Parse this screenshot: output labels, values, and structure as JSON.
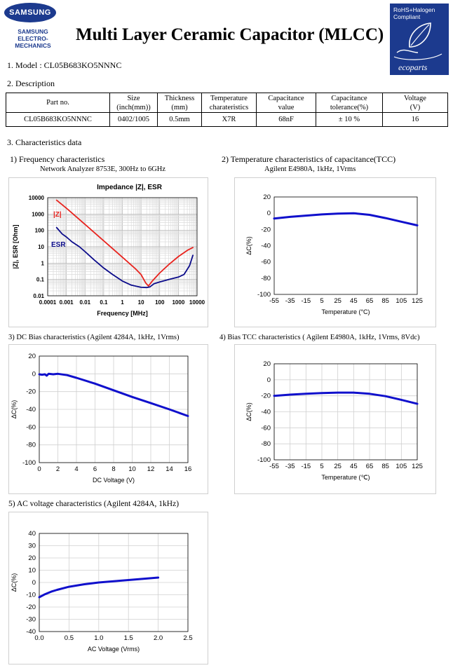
{
  "header": {
    "brand_logo": "SAMSUNG",
    "brand_sub_1": "SAMSUNG",
    "brand_sub_2": "ELECTRO-MECHANICS",
    "title": "Multi Layer Ceramic Capacitor (MLCC)",
    "rohs_line1": "RoHS+Halogen",
    "rohs_line2": "Compliant",
    "rohs_logo_text": "ecoparts"
  },
  "model_line": "1. Model : CL05B683KO5NNNC",
  "description_heading": "2. Description",
  "description_table": {
    "headers": [
      [
        "Part no.",
        ""
      ],
      [
        "Size",
        "(inch(mm))"
      ],
      [
        "Thickness",
        "(mm)"
      ],
      [
        "Temperature",
        "charateristics"
      ],
      [
        "Capacitance",
        "value"
      ],
      [
        "Capacitance",
        "tolerance(%)"
      ],
      [
        "Voltage",
        "(V)"
      ]
    ],
    "values": [
      "CL05B683KO5NNNC",
      "0402/1005",
      "0.5mm",
      "X7R",
      "68nF",
      "± 10 %",
      "16"
    ]
  },
  "characteristics_heading": "3. Characteristics data",
  "sections": {
    "freq_title": "1) Frequency characteristics",
    "freq_sub": "Network Analyzer 8753E, 300Hz to 6GHz",
    "tcc_title": "2) Temperature characteristics of capacitance(TCC)",
    "tcc_sub": "Agilent E4980A, 1kHz, 1Vrms",
    "dc_title": "3) DC Bias characteristics (Agilent 4284A, 1kHz, 1Vrms)",
    "btcc_title": "4) Bias TCC characteristics ( Agilent E4980A, 1kHz, 1Vrms, 8Vdc)",
    "ac_title": "5) AC voltage characteristics (Agilent 4284A, 1kHz)"
  },
  "chart_data": [
    {
      "id": "impedance",
      "type": "line",
      "title": "Impedance |Z|,  ESR",
      "xlabel": "Frequency [MHz]",
      "ylabel": "|Z|, ESR [Ohm]",
      "x_scale": "log",
      "y_scale": "log",
      "xlim": [
        0.0001,
        10000
      ],
      "ylim": [
        0.01,
        10000
      ],
      "x_ticks": [
        "0.0001",
        "0.001",
        "0.01",
        "0.1",
        "1",
        "10",
        "100",
        "1000",
        "10000"
      ],
      "y_ticks": [
        "0.01",
        "0.1",
        "1",
        "10",
        "100",
        "1000",
        "10000"
      ],
      "grid": true,
      "series": [
        {
          "name": "|Z|",
          "color": "#e8231e",
          "x": [
            0.0003,
            0.001,
            0.01,
            0.1,
            1,
            5,
            10,
            18,
            25,
            40,
            100,
            300,
            1000,
            3000,
            6000
          ],
          "y": [
            7000,
            2300,
            230,
            23,
            2.3,
            0.45,
            0.2,
            0.06,
            0.04,
            0.08,
            0.25,
            0.8,
            2.5,
            6,
            9
          ]
        },
        {
          "name": "ESR",
          "color": "#0b0b8a",
          "x": [
            0.0003,
            0.0006,
            0.001,
            0.002,
            0.005,
            0.01,
            0.03,
            0.1,
            0.3,
            1,
            3,
            10,
            20,
            30,
            50,
            100,
            300,
            1000,
            2000,
            4000,
            6000
          ],
          "y": [
            150,
            60,
            40,
            20,
            10,
            5,
            1.6,
            0.5,
            0.2,
            0.08,
            0.045,
            0.033,
            0.032,
            0.035,
            0.055,
            0.07,
            0.1,
            0.14,
            0.2,
            0.7,
            3
          ]
        }
      ]
    },
    {
      "id": "tcc",
      "type": "line",
      "xlabel": "Temperature (°C)",
      "ylabel": "ΔC(%)",
      "xlim": [
        -55,
        125
      ],
      "ylim": [
        -100,
        20
      ],
      "x_ticks": [
        -55,
        -35,
        -15,
        5,
        25,
        45,
        65,
        85,
        105,
        125
      ],
      "y_ticks": [
        20,
        0,
        -20,
        -40,
        -60,
        -80,
        -100
      ],
      "grid": false,
      "series": [
        {
          "color": "#1010cc",
          "x": [
            -55,
            -35,
            -15,
            5,
            25,
            45,
            65,
            85,
            105,
            125
          ],
          "y": [
            -6.5,
            -4.5,
            -3,
            -1.5,
            -0.5,
            0,
            -2,
            -6,
            -10.5,
            -15
          ]
        }
      ]
    },
    {
      "id": "dcbias",
      "type": "line",
      "xlabel": "DC Voltage (V)",
      "ylabel": "ΔC(%)",
      "xlim": [
        0,
        16
      ],
      "ylim": [
        -100,
        20
      ],
      "x_ticks": [
        0,
        2,
        4,
        6,
        8,
        10,
        12,
        14,
        16
      ],
      "y_ticks": [
        20,
        0,
        -20,
        -40,
        -60,
        -80,
        -100
      ],
      "grid": true,
      "series": [
        {
          "color": "#1010cc",
          "x": [
            0,
            0.3,
            0.6,
            0.8,
            1,
            1.5,
            2,
            3,
            4,
            6,
            8,
            10,
            12,
            14,
            16
          ],
          "y": [
            -0.5,
            -1,
            -0.5,
            -2,
            0,
            -0.5,
            0,
            -1.5,
            -4.5,
            -11,
            -18.5,
            -26,
            -33,
            -40,
            -47.5
          ]
        }
      ]
    },
    {
      "id": "biastcc",
      "type": "line",
      "xlabel": "Temperature (℃)",
      "ylabel": "ΔC(%)",
      "xlim": [
        -55,
        125
      ],
      "ylim": [
        -100,
        20
      ],
      "x_ticks": [
        -55,
        -35,
        -15,
        5,
        25,
        45,
        65,
        85,
        105,
        125
      ],
      "y_ticks": [
        20,
        0,
        -20,
        -40,
        -60,
        -80,
        -100
      ],
      "grid": true,
      "series": [
        {
          "color": "#1010cc",
          "x": [
            -55,
            -35,
            -15,
            5,
            25,
            45,
            65,
            85,
            105,
            125
          ],
          "y": [
            -20,
            -18.5,
            -17.5,
            -16.5,
            -16,
            -16,
            -17.5,
            -20.5,
            -25,
            -30
          ]
        }
      ]
    },
    {
      "id": "acv",
      "type": "line",
      "xlabel": "AC Voltage (Vrms)",
      "ylabel": "ΔC(%)",
      "xlim": [
        0,
        2.5
      ],
      "ylim": [
        -40,
        40
      ],
      "x_ticks": [
        "0.0",
        "0.5",
        "1.0",
        "1.5",
        "2.0",
        "2.5"
      ],
      "y_ticks": [
        40,
        30,
        20,
        10,
        0,
        -10,
        -20,
        -30,
        -40
      ],
      "grid": true,
      "series": [
        {
          "color": "#1010cc",
          "x": [
            0,
            0.1,
            0.2,
            0.3,
            0.5,
            0.75,
            1.0,
            1.25,
            1.5,
            1.75,
            2.0
          ],
          "y": [
            -12,
            -9.5,
            -7.5,
            -6,
            -3.5,
            -1.5,
            0,
            1,
            2,
            3,
            4
          ]
        }
      ]
    }
  ]
}
